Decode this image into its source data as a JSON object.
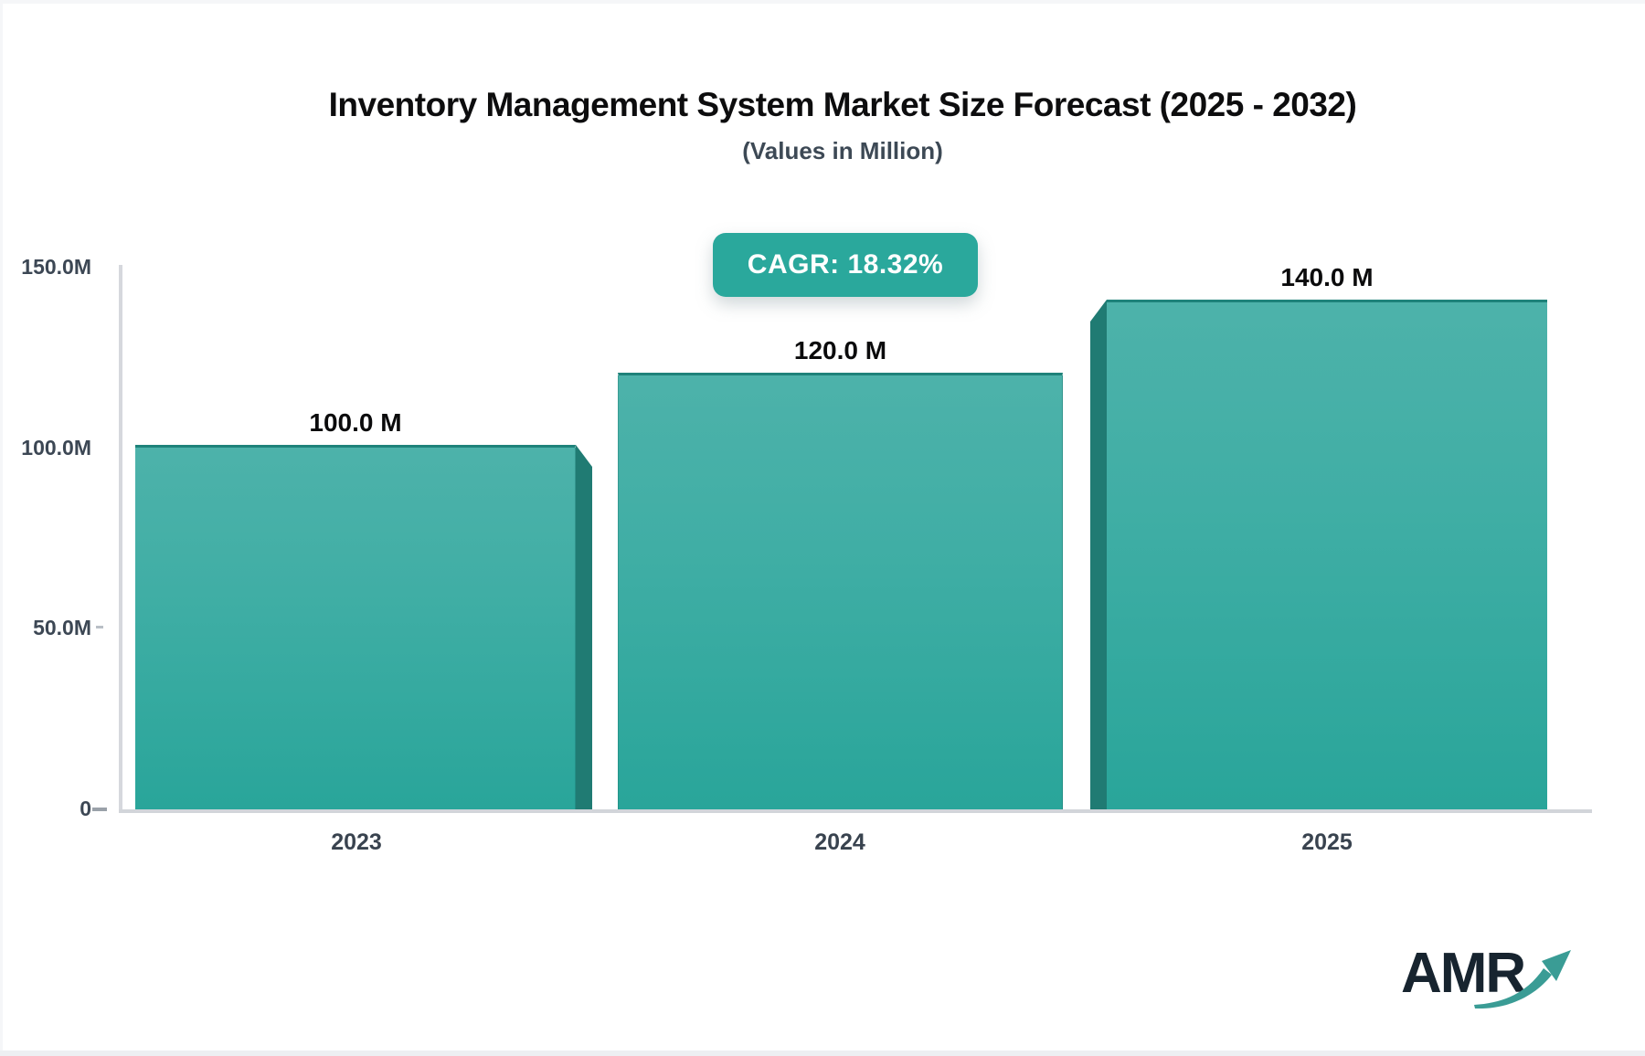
{
  "header": {
    "title": "Inventory Management System Market Size Forecast (2025 - 2032)",
    "subtitle": "(Values in Million)"
  },
  "badge": {
    "label": "CAGR: 18.32%",
    "background_color": "#2aa89c",
    "text_color": "#ffffff"
  },
  "chart_data": {
    "type": "bar",
    "title": "Inventory Management System Market Size Forecast (2025 - 2032)",
    "subtitle": "(Values in Million)",
    "categories": [
      "2023",
      "2024",
      "2025"
    ],
    "values": [
      100.0,
      120.0,
      140.0
    ],
    "value_labels": [
      "100.0 M",
      "120.0 M",
      "140.0 M"
    ],
    "unit": "Million",
    "cagr": "18.32%",
    "ylim": [
      0,
      150
    ],
    "y_ticks": [
      {
        "value": 150,
        "label": "150.0M"
      },
      {
        "value": 100,
        "label": "100.0M"
      },
      {
        "value": 50,
        "label": "50.0M"
      },
      {
        "value": 0,
        "label": "0"
      }
    ],
    "grid": "off",
    "legend": "none",
    "bar_color_top": "#4db2aa",
    "bar_color_bottom": "#29a59a",
    "bar_top_border_color": "#1e827a",
    "bar_3d_edge_color": "#207b73",
    "axis_line_color": "#d4d7db",
    "label_color": "#3c4754"
  },
  "logo": {
    "text": "AMR",
    "arrow_icon": "growth-trend-arrow",
    "text_color": "#17242f",
    "arrow_color": "#3a9c95"
  }
}
